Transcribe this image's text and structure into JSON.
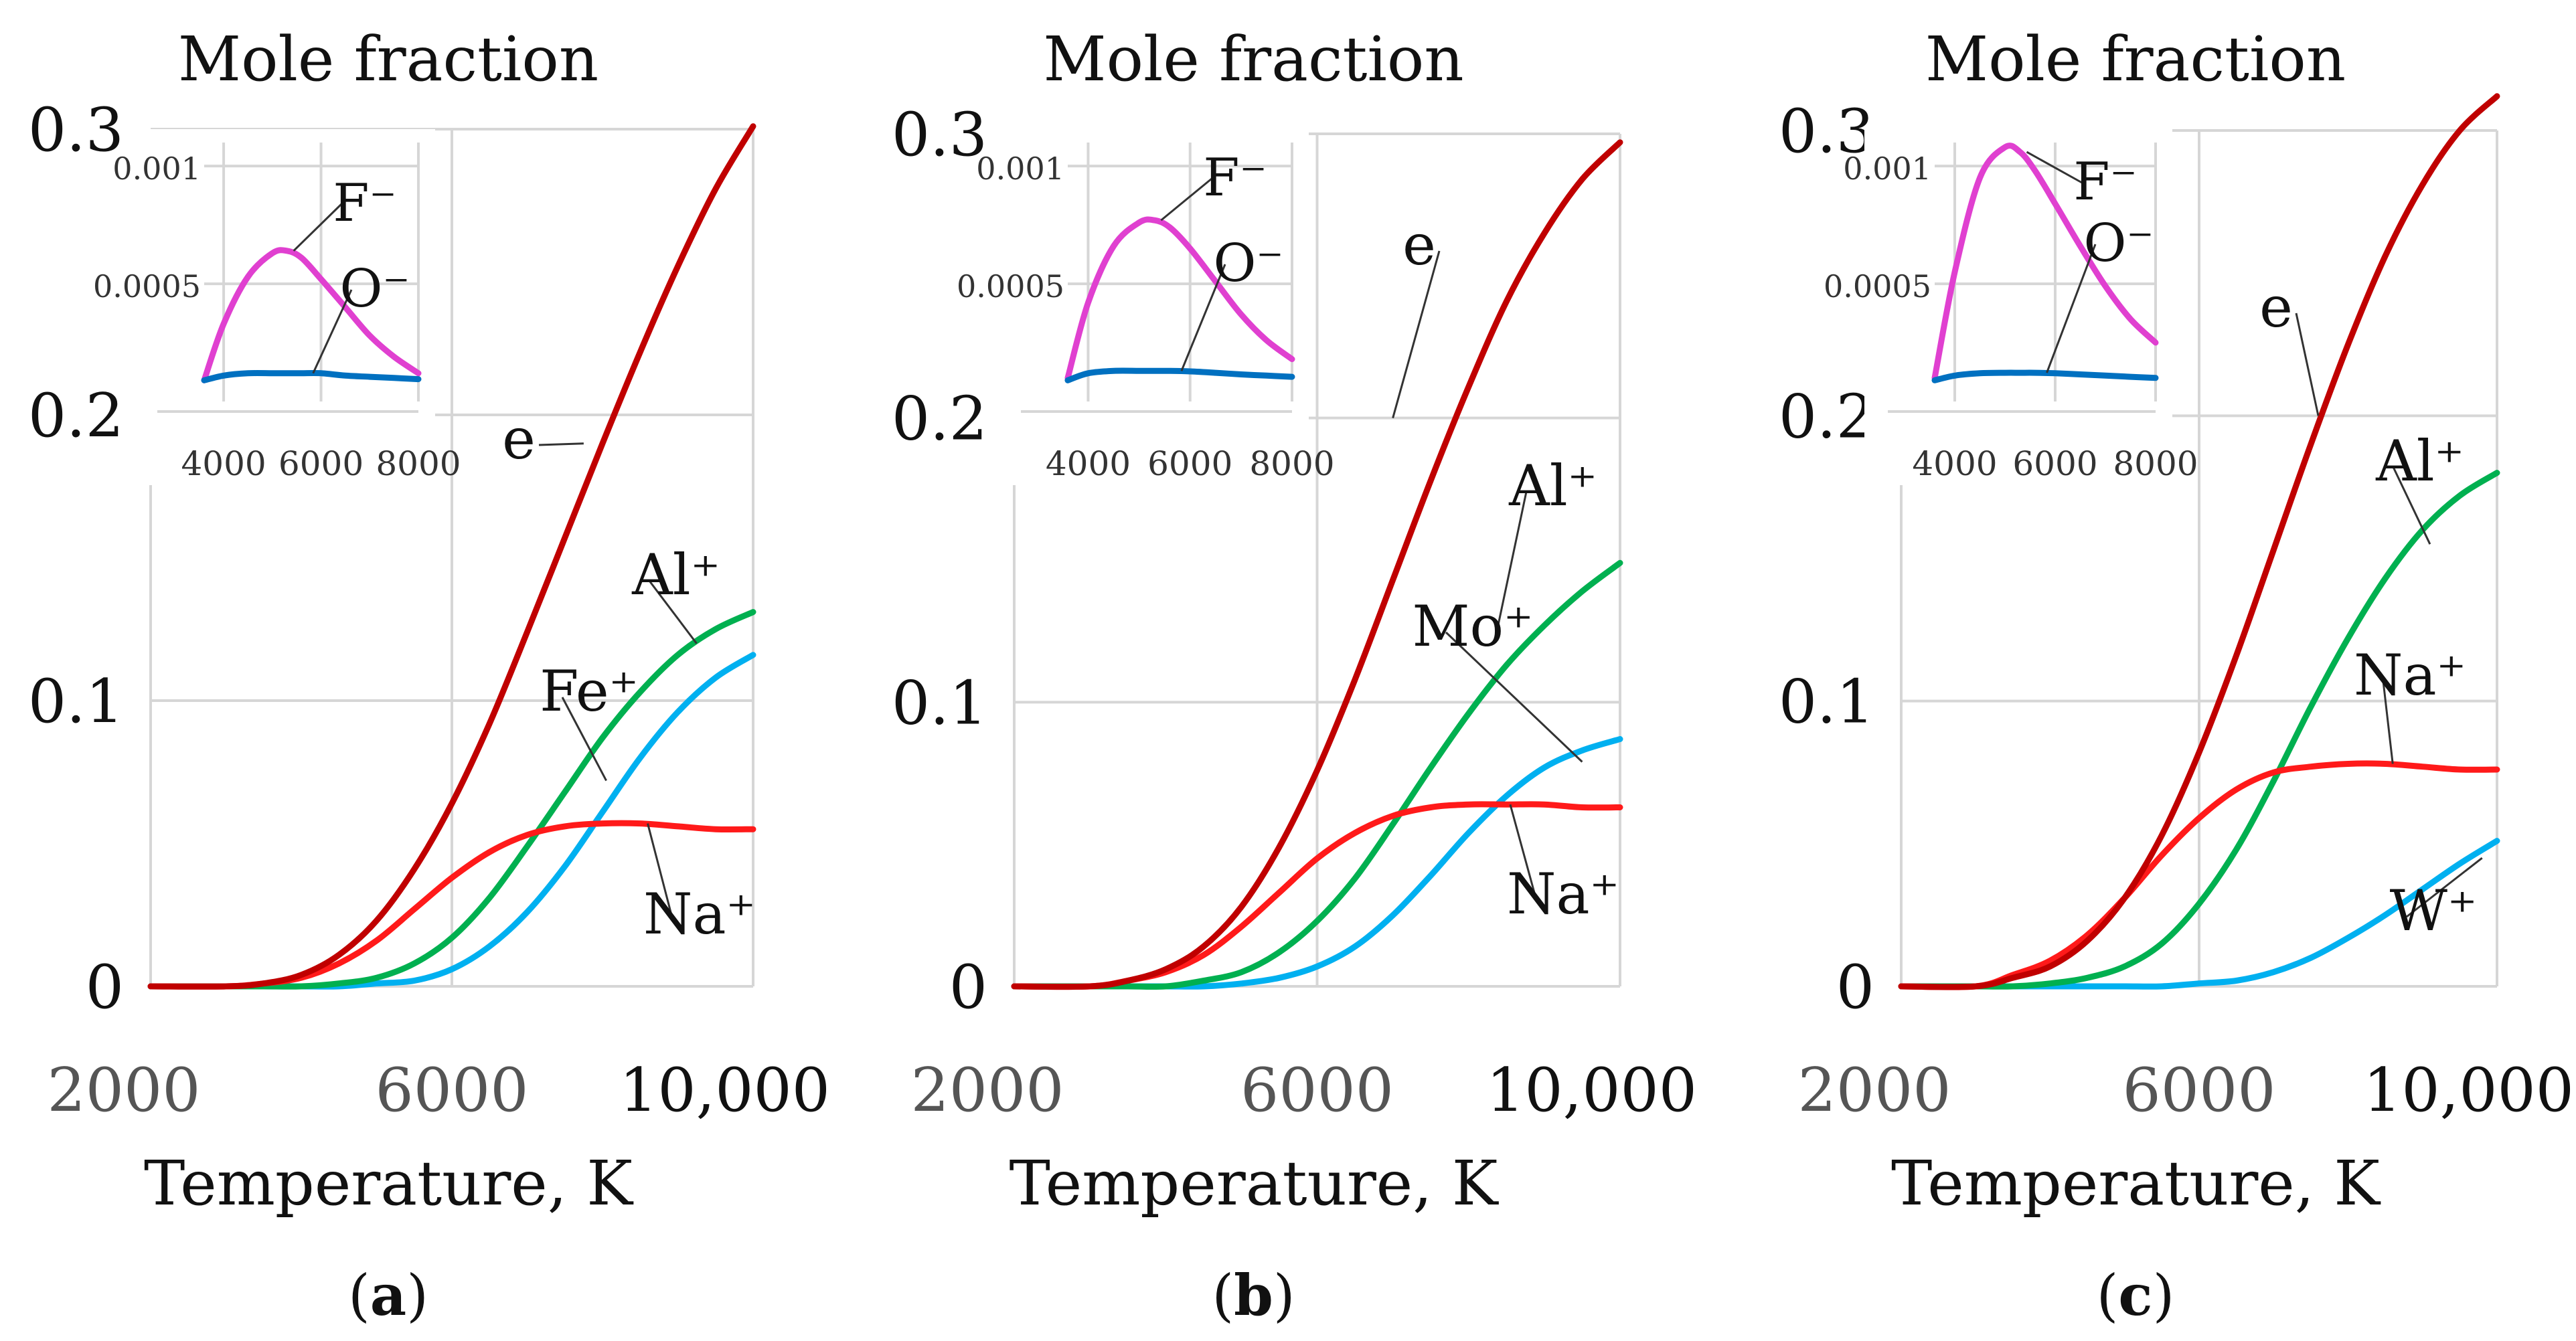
{
  "colors": {
    "e": "#c00000",
    "Na+": "#ff1a1a",
    "Al+": "#00b050",
    "third": "#00b0f0",
    "F-": "#e040d0",
    "O-": "#0070c0",
    "grid": "#d6d6d6"
  },
  "chart_data": [
    {
      "type": "line",
      "panel_label_open": "(",
      "panel_label_letter": "a",
      "panel_label_close": ")",
      "title": "Mole fraction",
      "xlabel": "Temperature, K",
      "ylabel": "",
      "xlim": [
        2000,
        10000
      ],
      "ylim": [
        0,
        0.3
      ],
      "x_ticks": [
        "2000",
        "6000",
        "10,000"
      ],
      "y_ticks": [
        "0",
        "0.1",
        "0.2",
        "0.3"
      ],
      "grid": true,
      "x": [
        2000,
        3000,
        3500,
        4000,
        4500,
        5000,
        5500,
        6000,
        6500,
        7000,
        7500,
        8000,
        8500,
        9000,
        9500,
        10000
      ],
      "series": [
        {
          "name": "e",
          "label": "e",
          "color_key": "e",
          "values": [
            0,
            0,
            0.001,
            0.004,
            0.011,
            0.023,
            0.041,
            0.064,
            0.092,
            0.124,
            0.157,
            0.19,
            0.222,
            0.252,
            0.279,
            0.301
          ]
        },
        {
          "name": "Na+",
          "label": "Na⁺",
          "color_key": "Na+",
          "values": [
            0,
            0,
            0.001,
            0.003,
            0.008,
            0.016,
            0.027,
            0.038,
            0.047,
            0.053,
            0.056,
            0.057,
            0.057,
            0.056,
            0.055,
            0.055
          ]
        },
        {
          "name": "Al+",
          "label": "Al⁺",
          "color_key": "Al+",
          "values": [
            0,
            0,
            0,
            0,
            0.001,
            0.003,
            0.008,
            0.017,
            0.031,
            0.049,
            0.068,
            0.087,
            0.103,
            0.116,
            0.125,
            0.131
          ]
        },
        {
          "name": "Fe+",
          "label": "Fe⁺",
          "color_key": "third",
          "values": [
            0,
            0,
            0,
            0,
            0,
            0.001,
            0.002,
            0.006,
            0.014,
            0.026,
            0.042,
            0.061,
            0.08,
            0.096,
            0.108,
            0.116
          ]
        }
      ],
      "inset": {
        "type": "line",
        "xlim": [
          3600,
          8000
        ],
        "ylim": [
          0,
          0.0011
        ],
        "x_ticks": [
          "4000",
          "6000",
          "8000"
        ],
        "y_ticks": [
          "0.0005",
          "0.001"
        ],
        "x": [
          3600,
          4000,
          4500,
          5000,
          5300,
          5600,
          6000,
          6500,
          7000,
          7500,
          8000
        ],
        "series": [
          {
            "name": "F-",
            "label": "F⁻",
            "color_key": "F-",
            "values": [
              9e-05,
              0.00033,
              0.00053,
              0.00063,
              0.00064,
              0.00061,
              0.00052,
              0.0004,
              0.00028,
              0.00019,
              0.00012
            ]
          },
          {
            "name": "O-",
            "label": "O⁻",
            "color_key": "O-",
            "values": [
              9e-05,
              0.00011,
              0.00012,
              0.00012,
              0.00012,
              0.00012,
              0.00012,
              0.00011,
              0.000105,
              0.0001,
              9.5e-05
            ]
          }
        ]
      }
    },
    {
      "type": "line",
      "panel_label_open": "(",
      "panel_label_letter": "b",
      "panel_label_close": ")",
      "title": "Mole fraction",
      "xlabel": "Temperature, K",
      "ylabel": "",
      "xlim": [
        2000,
        10000
      ],
      "ylim": [
        0,
        0.3
      ],
      "x_ticks": [
        "2000",
        "6000",
        "10,000"
      ],
      "y_ticks": [
        "0",
        "0.1",
        "0.2",
        "0.3"
      ],
      "grid": true,
      "x": [
        2000,
        3000,
        3500,
        4000,
        4500,
        5000,
        5500,
        6000,
        6500,
        7000,
        7500,
        8000,
        8500,
        9000,
        9500,
        10000
      ],
      "series": [
        {
          "name": "e",
          "label": "e",
          "color_key": "e",
          "values": [
            0,
            0,
            0.002,
            0.006,
            0.014,
            0.028,
            0.049,
            0.076,
            0.108,
            0.143,
            0.178,
            0.211,
            0.241,
            0.265,
            0.284,
            0.297
          ]
        },
        {
          "name": "Na+",
          "label": "Na⁺",
          "color_key": "Na+",
          "values": [
            0,
            0,
            0.002,
            0.005,
            0.011,
            0.021,
            0.033,
            0.045,
            0.054,
            0.06,
            0.063,
            0.064,
            0.064,
            0.064,
            0.063,
            0.063
          ]
        },
        {
          "name": "Al+",
          "label": "Al⁺",
          "color_key": "Al+",
          "values": [
            0,
            0,
            0,
            0,
            0.002,
            0.005,
            0.012,
            0.023,
            0.038,
            0.057,
            0.077,
            0.096,
            0.113,
            0.127,
            0.139,
            0.149
          ]
        },
        {
          "name": "Mo+",
          "label": "Mo⁺",
          "color_key": "third",
          "values": [
            0,
            0,
            0,
            0,
            0,
            0.001,
            0.003,
            0.007,
            0.014,
            0.025,
            0.039,
            0.054,
            0.067,
            0.077,
            0.083,
            0.087
          ]
        }
      ],
      "inset": {
        "type": "line",
        "xlim": [
          3600,
          8000
        ],
        "ylim": [
          0,
          0.0011
        ],
        "x_ticks": [
          "4000",
          "6000",
          "8000"
        ],
        "y_ticks": [
          "0.0005",
          "0.001"
        ],
        "x": [
          3600,
          4000,
          4500,
          5000,
          5300,
          5600,
          6000,
          6500,
          7000,
          7500,
          8000
        ],
        "series": [
          {
            "name": "F-",
            "label": "F⁻",
            "color_key": "F-",
            "values": [
              0.0001,
              0.00042,
              0.00066,
              0.00076,
              0.00077,
              0.00074,
              0.00065,
              0.00051,
              0.00037,
              0.00026,
              0.00018
            ]
          },
          {
            "name": "O-",
            "label": "O⁻",
            "color_key": "O-",
            "values": [
              9e-05,
              0.00012,
              0.00013,
              0.00013,
              0.00013,
              0.00013,
              0.000128,
              0.000122,
              0.000115,
              0.00011,
              0.000105
            ]
          }
        ]
      }
    },
    {
      "type": "line",
      "panel_label_open": "(",
      "panel_label_letter": "c",
      "panel_label_close": ")",
      "title": "Mole fraction",
      "xlabel": "Temperature, K",
      "ylabel": "",
      "xlim": [
        2000,
        10000
      ],
      "ylim": [
        0,
        0.3
      ],
      "x_ticks": [
        "2000",
        "6000",
        "10,000"
      ],
      "y_ticks": [
        "0",
        "0.1",
        "0.2",
        "0.3"
      ],
      "grid": true,
      "x": [
        2000,
        3000,
        3500,
        4000,
        4500,
        5000,
        5500,
        6000,
        6500,
        7000,
        7500,
        8000,
        8500,
        9000,
        9500,
        10000
      ],
      "series": [
        {
          "name": "e",
          "label": "e",
          "color_key": "e",
          "values": [
            0,
            0,
            0.003,
            0.007,
            0.016,
            0.031,
            0.053,
            0.082,
            0.116,
            0.153,
            0.19,
            0.225,
            0.256,
            0.281,
            0.3,
            0.312
          ]
        },
        {
          "name": "Na+",
          "label": "Na⁺",
          "color_key": "Na+",
          "values": [
            0,
            0,
            0.004,
            0.009,
            0.018,
            0.031,
            0.046,
            0.059,
            0.069,
            0.075,
            0.077,
            0.078,
            0.078,
            0.077,
            0.076,
            0.076
          ]
        },
        {
          "name": "Al+",
          "label": "Al⁺",
          "color_key": "Al+",
          "values": [
            0,
            0,
            0,
            0.001,
            0.003,
            0.007,
            0.015,
            0.029,
            0.048,
            0.072,
            0.098,
            0.122,
            0.143,
            0.16,
            0.172,
            0.18
          ]
        },
        {
          "name": "W+",
          "label": "W⁺",
          "color_key": "third",
          "values": [
            0,
            0,
            0,
            0,
            0,
            0,
            0,
            0.001,
            0.002,
            0.005,
            0.01,
            0.017,
            0.025,
            0.034,
            0.043,
            0.051
          ]
        }
      ],
      "inset": {
        "type": "line",
        "xlim": [
          3600,
          8000
        ],
        "ylim": [
          0,
          0.0011
        ],
        "x_ticks": [
          "4000",
          "6000",
          "8000"
        ],
        "y_ticks": [
          "0.0005",
          "0.001"
        ],
        "x": [
          3600,
          4000,
          4500,
          5000,
          5300,
          5600,
          6000,
          6500,
          7000,
          7500,
          8000
        ],
        "series": [
          {
            "name": "F-",
            "label": "F⁻",
            "color_key": "F-",
            "values": [
              0.0001,
              0.00055,
              0.00095,
              0.00108,
              0.00106,
              0.00098,
              0.00084,
              0.00066,
              0.00049,
              0.00035,
              0.00025
            ]
          },
          {
            "name": "O-",
            "label": "O⁻",
            "color_key": "O-",
            "values": [
              9e-05,
              0.00011,
              0.00012,
              0.000122,
              0.000122,
              0.000122,
              0.00012,
              0.000115,
              0.00011,
              0.000105,
              0.0001
            ]
          }
        ]
      }
    }
  ]
}
